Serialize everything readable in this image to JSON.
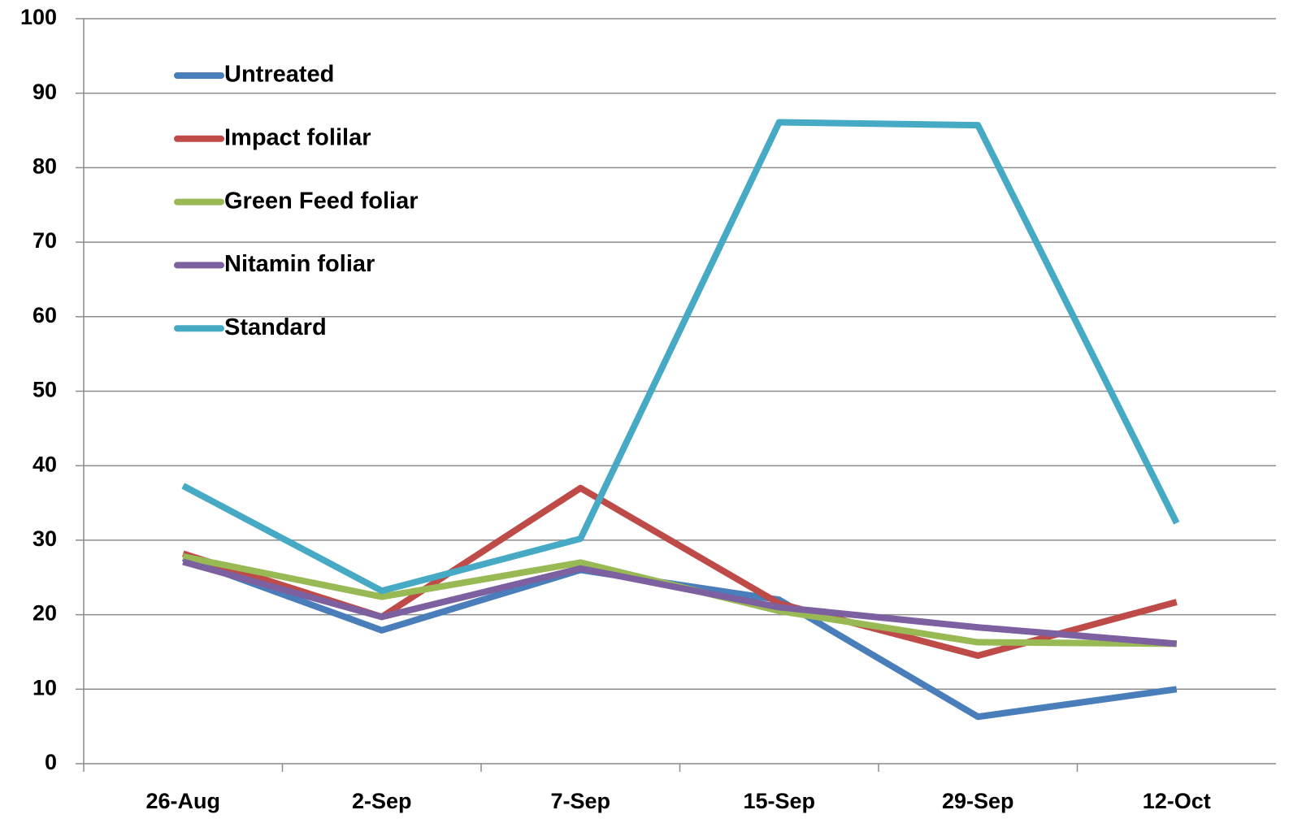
{
  "chart_data": {
    "type": "line",
    "categories": [
      "26-Aug",
      "2-Sep",
      "7-Sep",
      "15-Sep",
      "29-Sep",
      "12-Oct"
    ],
    "series": [
      {
        "name": "Untreated",
        "color": "#4a7ebb",
        "values": [
          27.6,
          17.9,
          26.0,
          22.0,
          6.3,
          10.0
        ]
      },
      {
        "name": "Impact folilar",
        "color": "#be4b48",
        "values": [
          28.2,
          19.7,
          37.0,
          21.5,
          14.5,
          21.7
        ]
      },
      {
        "name": "Green Feed foliar",
        "color": "#98b954",
        "values": [
          27.8,
          22.4,
          27.0,
          20.5,
          16.3,
          16.1
        ]
      },
      {
        "name": "Nitamin foliar",
        "color": "#7d60a0",
        "values": [
          27.1,
          19.7,
          26.2,
          21.0,
          18.3,
          16.1
        ]
      },
      {
        "name": "Standard",
        "color": "#46aac5",
        "values": [
          37.3,
          23.2,
          30.2,
          86.1,
          85.7,
          32.3
        ]
      }
    ],
    "ylim": [
      0,
      100
    ],
    "yticks": [
      0,
      10,
      20,
      30,
      40,
      50,
      60,
      70,
      80,
      90,
      100
    ],
    "grid": true,
    "legend": "top-left"
  }
}
